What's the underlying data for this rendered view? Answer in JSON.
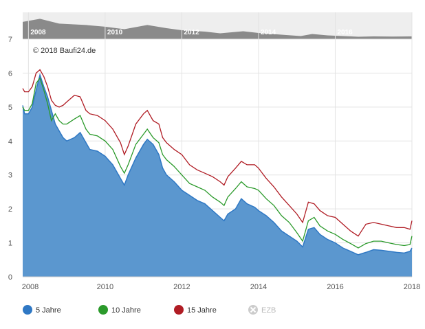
{
  "chart_data": {
    "type": "area",
    "copyright": "© 2018 Baufi24.de",
    "x_ticks": [
      "2008",
      "2010",
      "2012",
      "2014",
      "2016",
      "2018"
    ],
    "y_ticks": [
      "0",
      "1",
      "2",
      "3",
      "4",
      "5",
      "6",
      "7"
    ],
    "ylim": [
      0,
      7
    ],
    "xlim": [
      2007.85,
      2018.0
    ],
    "navigator": {
      "labels": [
        "2008",
        "2010",
        "2012",
        "2014",
        "2016"
      ],
      "values": [
        [
          2007.85,
          5.0
        ],
        [
          2008.3,
          5.9
        ],
        [
          2008.8,
          4.5
        ],
        [
          2009.5,
          4.1
        ],
        [
          2010.0,
          3.6
        ],
        [
          2010.5,
          2.9
        ],
        [
          2011.1,
          4.1
        ],
        [
          2011.6,
          3.2
        ],
        [
          2012.0,
          2.6
        ],
        [
          2012.6,
          2.2
        ],
        [
          2013.0,
          1.7
        ],
        [
          2013.6,
          2.3
        ],
        [
          2014.0,
          1.8
        ],
        [
          2014.6,
          1.3
        ],
        [
          2015.1,
          0.9
        ],
        [
          2015.4,
          1.5
        ],
        [
          2015.8,
          1.1
        ],
        [
          2016.6,
          0.7
        ],
        [
          2017.0,
          0.8
        ],
        [
          2017.5,
          0.75
        ],
        [
          2018.0,
          0.8
        ]
      ]
    },
    "series": [
      {
        "name": "5 Jahre",
        "color": "#2f78c4",
        "type": "area",
        "points": [
          [
            2007.85,
            5.05
          ],
          [
            2007.9,
            4.8
          ],
          [
            2008.0,
            4.8
          ],
          [
            2008.1,
            5.0
          ],
          [
            2008.2,
            5.5
          ],
          [
            2008.3,
            5.95
          ],
          [
            2008.4,
            5.6
          ],
          [
            2008.5,
            5.3
          ],
          [
            2008.6,
            4.9
          ],
          [
            2008.7,
            4.5
          ],
          [
            2008.8,
            4.3
          ],
          [
            2008.9,
            4.1
          ],
          [
            2009.0,
            4.0
          ],
          [
            2009.2,
            4.1
          ],
          [
            2009.35,
            4.25
          ],
          [
            2009.5,
            3.95
          ],
          [
            2009.6,
            3.75
          ],
          [
            2009.8,
            3.7
          ],
          [
            2010.0,
            3.55
          ],
          [
            2010.2,
            3.3
          ],
          [
            2010.4,
            2.9
          ],
          [
            2010.5,
            2.7
          ],
          [
            2010.6,
            3.0
          ],
          [
            2010.8,
            3.5
          ],
          [
            2011.0,
            3.9
          ],
          [
            2011.1,
            4.05
          ],
          [
            2011.25,
            3.9
          ],
          [
            2011.4,
            3.6
          ],
          [
            2011.5,
            3.2
          ],
          [
            2011.6,
            3.0
          ],
          [
            2011.8,
            2.8
          ],
          [
            2012.0,
            2.55
          ],
          [
            2012.2,
            2.4
          ],
          [
            2012.4,
            2.25
          ],
          [
            2012.6,
            2.15
          ],
          [
            2012.8,
            1.95
          ],
          [
            2013.0,
            1.75
          ],
          [
            2013.1,
            1.65
          ],
          [
            2013.2,
            1.85
          ],
          [
            2013.4,
            2.0
          ],
          [
            2013.55,
            2.3
          ],
          [
            2013.7,
            2.15
          ],
          [
            2013.9,
            2.05
          ],
          [
            2014.0,
            1.95
          ],
          [
            2014.2,
            1.8
          ],
          [
            2014.4,
            1.6
          ],
          [
            2014.6,
            1.35
          ],
          [
            2014.8,
            1.2
          ],
          [
            2015.0,
            1.05
          ],
          [
            2015.15,
            0.88
          ],
          [
            2015.3,
            1.4
          ],
          [
            2015.45,
            1.45
          ],
          [
            2015.6,
            1.25
          ],
          [
            2015.8,
            1.1
          ],
          [
            2016.0,
            1.0
          ],
          [
            2016.2,
            0.85
          ],
          [
            2016.4,
            0.75
          ],
          [
            2016.6,
            0.65
          ],
          [
            2016.8,
            0.72
          ],
          [
            2017.0,
            0.8
          ],
          [
            2017.2,
            0.78
          ],
          [
            2017.4,
            0.75
          ],
          [
            2017.6,
            0.72
          ],
          [
            2017.8,
            0.7
          ],
          [
            2017.95,
            0.75
          ],
          [
            2018.0,
            0.85
          ]
        ]
      },
      {
        "name": "10 Jahre",
        "color": "#2b9a2b",
        "type": "line",
        "points": [
          [
            2007.85,
            5.0
          ],
          [
            2007.9,
            4.9
          ],
          [
            2008.0,
            4.9
          ],
          [
            2008.1,
            5.1
          ],
          [
            2008.2,
            5.7
          ],
          [
            2008.3,
            5.85
          ],
          [
            2008.4,
            5.5
          ],
          [
            2008.5,
            5.1
          ],
          [
            2008.6,
            4.6
          ],
          [
            2008.7,
            4.8
          ],
          [
            2008.8,
            4.6
          ],
          [
            2008.9,
            4.5
          ],
          [
            2009.0,
            4.5
          ],
          [
            2009.2,
            4.65
          ],
          [
            2009.35,
            4.75
          ],
          [
            2009.5,
            4.35
          ],
          [
            2009.6,
            4.2
          ],
          [
            2009.8,
            4.15
          ],
          [
            2010.0,
            4.0
          ],
          [
            2010.2,
            3.75
          ],
          [
            2010.4,
            3.25
          ],
          [
            2010.5,
            3.05
          ],
          [
            2010.6,
            3.3
          ],
          [
            2010.8,
            3.9
          ],
          [
            2011.0,
            4.2
          ],
          [
            2011.1,
            4.35
          ],
          [
            2011.25,
            4.1
          ],
          [
            2011.4,
            3.95
          ],
          [
            2011.5,
            3.6
          ],
          [
            2011.6,
            3.45
          ],
          [
            2011.8,
            3.25
          ],
          [
            2012.0,
            3.0
          ],
          [
            2012.2,
            2.75
          ],
          [
            2012.4,
            2.65
          ],
          [
            2012.6,
            2.55
          ],
          [
            2012.8,
            2.35
          ],
          [
            2013.0,
            2.2
          ],
          [
            2013.1,
            2.1
          ],
          [
            2013.2,
            2.35
          ],
          [
            2013.4,
            2.6
          ],
          [
            2013.55,
            2.8
          ],
          [
            2013.7,
            2.65
          ],
          [
            2013.9,
            2.6
          ],
          [
            2014.0,
            2.55
          ],
          [
            2014.2,
            2.3
          ],
          [
            2014.4,
            2.1
          ],
          [
            2014.6,
            1.8
          ],
          [
            2014.8,
            1.6
          ],
          [
            2015.0,
            1.3
          ],
          [
            2015.15,
            1.05
          ],
          [
            2015.3,
            1.65
          ],
          [
            2015.45,
            1.75
          ],
          [
            2015.6,
            1.5
          ],
          [
            2015.8,
            1.35
          ],
          [
            2016.0,
            1.25
          ],
          [
            2016.2,
            1.1
          ],
          [
            2016.4,
            0.98
          ],
          [
            2016.6,
            0.85
          ],
          [
            2016.8,
            0.98
          ],
          [
            2017.0,
            1.05
          ],
          [
            2017.2,
            1.05
          ],
          [
            2017.4,
            1.0
          ],
          [
            2017.6,
            0.95
          ],
          [
            2017.8,
            0.92
          ],
          [
            2017.95,
            0.95
          ],
          [
            2018.0,
            1.2
          ]
        ]
      },
      {
        "name": "15 Jahre",
        "color": "#b01c24",
        "type": "line",
        "points": [
          [
            2007.85,
            5.55
          ],
          [
            2007.9,
            5.45
          ],
          [
            2008.0,
            5.45
          ],
          [
            2008.1,
            5.6
          ],
          [
            2008.2,
            6.0
          ],
          [
            2008.3,
            6.1
          ],
          [
            2008.4,
            5.9
          ],
          [
            2008.5,
            5.6
          ],
          [
            2008.6,
            5.2
          ],
          [
            2008.7,
            5.05
          ],
          [
            2008.8,
            5.0
          ],
          [
            2008.9,
            5.05
          ],
          [
            2009.0,
            5.15
          ],
          [
            2009.2,
            5.35
          ],
          [
            2009.35,
            5.3
          ],
          [
            2009.5,
            4.9
          ],
          [
            2009.6,
            4.8
          ],
          [
            2009.8,
            4.75
          ],
          [
            2010.0,
            4.6
          ],
          [
            2010.2,
            4.35
          ],
          [
            2010.4,
            3.95
          ],
          [
            2010.5,
            3.6
          ],
          [
            2010.6,
            3.85
          ],
          [
            2010.8,
            4.5
          ],
          [
            2011.0,
            4.8
          ],
          [
            2011.1,
            4.9
          ],
          [
            2011.25,
            4.6
          ],
          [
            2011.4,
            4.5
          ],
          [
            2011.5,
            4.1
          ],
          [
            2011.6,
            3.95
          ],
          [
            2011.8,
            3.75
          ],
          [
            2012.0,
            3.6
          ],
          [
            2012.2,
            3.3
          ],
          [
            2012.4,
            3.15
          ],
          [
            2012.6,
            3.05
          ],
          [
            2012.8,
            2.95
          ],
          [
            2013.0,
            2.8
          ],
          [
            2013.1,
            2.7
          ],
          [
            2013.2,
            2.95
          ],
          [
            2013.4,
            3.2
          ],
          [
            2013.55,
            3.4
          ],
          [
            2013.7,
            3.3
          ],
          [
            2013.9,
            3.3
          ],
          [
            2014.0,
            3.2
          ],
          [
            2014.2,
            2.9
          ],
          [
            2014.4,
            2.65
          ],
          [
            2014.6,
            2.35
          ],
          [
            2014.8,
            2.1
          ],
          [
            2015.0,
            1.85
          ],
          [
            2015.15,
            1.6
          ],
          [
            2015.3,
            2.2
          ],
          [
            2015.45,
            2.15
          ],
          [
            2015.6,
            1.95
          ],
          [
            2015.8,
            1.8
          ],
          [
            2016.0,
            1.75
          ],
          [
            2016.2,
            1.55
          ],
          [
            2016.4,
            1.35
          ],
          [
            2016.6,
            1.2
          ],
          [
            2016.8,
            1.55
          ],
          [
            2017.0,
            1.6
          ],
          [
            2017.2,
            1.55
          ],
          [
            2017.4,
            1.5
          ],
          [
            2017.6,
            1.45
          ],
          [
            2017.8,
            1.45
          ],
          [
            2017.95,
            1.4
          ],
          [
            2018.0,
            1.65
          ]
        ]
      }
    ],
    "legend": [
      {
        "label": "5 Jahre",
        "color": "#2f78c4",
        "enabled": true
      },
      {
        "label": "10 Jahre",
        "color": "#2b9a2b",
        "enabled": true
      },
      {
        "label": "15 Jahre",
        "color": "#b01c24",
        "enabled": true
      },
      {
        "label": "EZB",
        "color": "#cccccc",
        "enabled": false
      }
    ]
  }
}
